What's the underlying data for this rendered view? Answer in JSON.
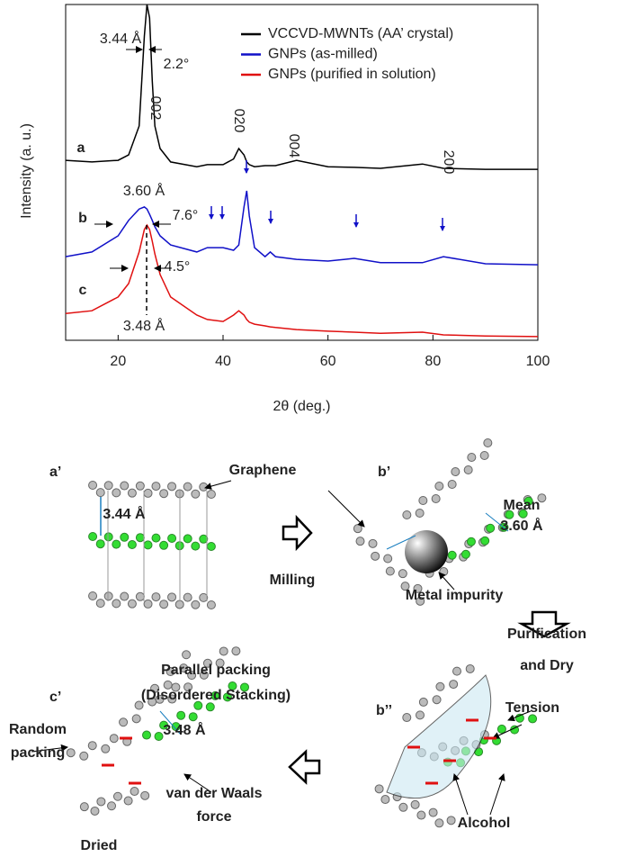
{
  "chart_data": {
    "type": "line",
    "ylabel": "Intensity (a. u.)",
    "xlabel": "2θ (deg.)",
    "xlim": [
      10,
      100
    ],
    "xticks": [
      20,
      40,
      60,
      80,
      100
    ],
    "ylim": [
      0,
      100
    ],
    "x": [
      10,
      15,
      20,
      22,
      24,
      25,
      25.5,
      26,
      26.5,
      27,
      28,
      30,
      35,
      37,
      40,
      42,
      43,
      44,
      44.5,
      45,
      46,
      48,
      49,
      50,
      54,
      60,
      65,
      70,
      78,
      82,
      90,
      100
    ],
    "series": [
      {
        "name": "VCCVD-MWNTs (AA’ crystal)",
        "color": "#000000",
        "values": [
          53.6,
          53.1,
          53.6,
          55.2,
          63.8,
          90.6,
          100,
          96.0,
          77.2,
          63.8,
          57.1,
          53.1,
          51.7,
          52.3,
          52.3,
          54.0,
          57.1,
          55.2,
          53.1,
          52.3,
          51.7,
          52.0,
          52.0,
          52.0,
          53.6,
          51.7,
          51.5,
          51.2,
          52.5,
          51.2,
          50.9,
          50.9
        ]
      },
      {
        "name": "GNPs (as-milled)",
        "color": "#1010c8",
        "values": [
          24.9,
          26.3,
          31.1,
          35.7,
          39.1,
          39.7,
          39.1,
          37.5,
          35.7,
          33.8,
          31.1,
          28.4,
          26.3,
          27.6,
          27.6,
          26.8,
          28.4,
          39.7,
          44.5,
          37.0,
          27.6,
          24.9,
          26.3,
          24.9,
          24.1,
          23.6,
          24.4,
          23.1,
          23.1,
          24.9,
          22.8,
          22.5
        ]
      },
      {
        "name": "GNPs (purified in solution)",
        "color": "#e01010",
        "values": [
          8.0,
          8.8,
          12.9,
          16.9,
          26.3,
          33.0,
          34.3,
          33.0,
          29.5,
          25.7,
          19.6,
          12.9,
          7.5,
          6.2,
          5.6,
          7.5,
          8.8,
          7.5,
          6.2,
          5.4,
          4.8,
          4.3,
          4.0,
          3.8,
          3.2,
          2.7,
          2.4,
          2.1,
          2.4,
          1.6,
          1.3,
          1.1
        ]
      }
    ],
    "annotations": [
      "3.44 Å",
      "2.2°",
      "002",
      "020",
      "004",
      "200",
      "a",
      "b",
      "c",
      "3.60 Å",
      "7.6°",
      "4.5°",
      "3.48 Å"
    ]
  },
  "diagram": {
    "labels": [
      "a’",
      "Graphene",
      "3.44 Å",
      "Milling",
      "b’",
      "Mean",
      "3.60 Å",
      "Metal impurity",
      "Purification",
      "and Dry",
      "b’’",
      "Tension",
      "Alcohol",
      "c’",
      "Parallel packing",
      "(Disordered Stacking)",
      "Random",
      "packing",
      "3.48 Å",
      "van der Waals",
      "force",
      "Dried"
    ]
  }
}
